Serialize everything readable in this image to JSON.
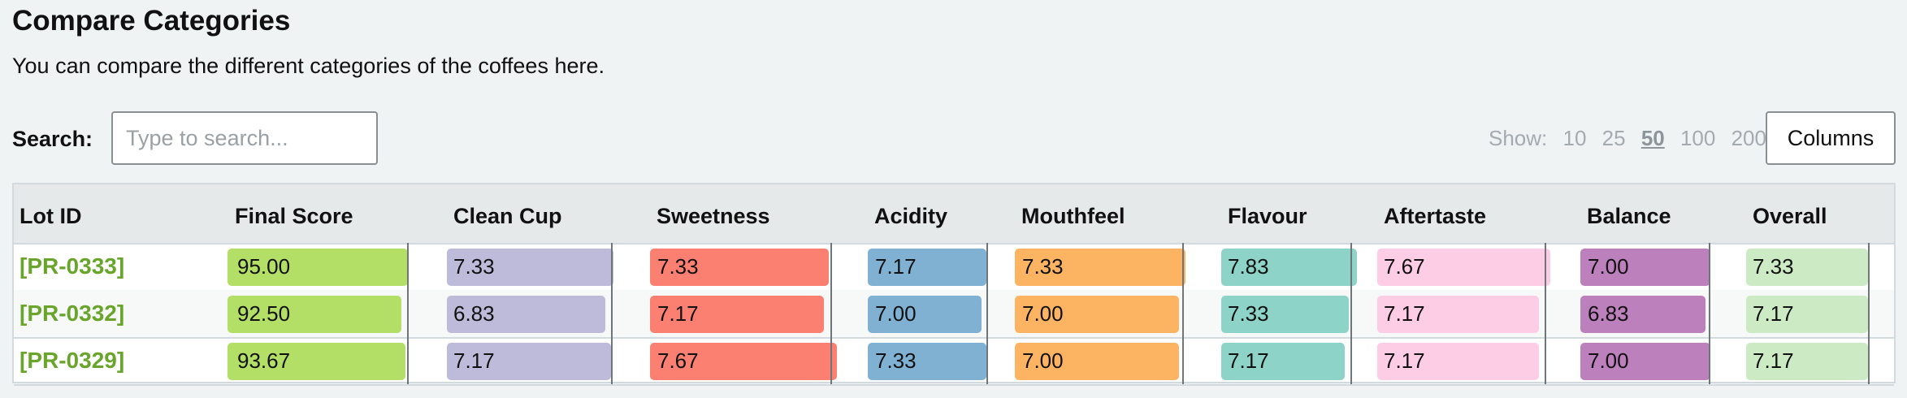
{
  "header": {
    "title": "Compare Categories",
    "description": "You can compare the different categories of the coffees here."
  },
  "search": {
    "label": "Search:",
    "placeholder": "Type to search...",
    "value": ""
  },
  "show": {
    "label": "Show:",
    "options": [
      "10",
      "25",
      "50",
      "100",
      "200"
    ],
    "selected": "50"
  },
  "columns_button": {
    "label": "Columns"
  },
  "table": {
    "columns": [
      "Lot ID",
      "Final Score",
      "Clean Cup",
      "Sweetness",
      "Acidity",
      "Mouthfeel",
      "Flavour",
      "Aftertaste",
      "Balance",
      "Overall"
    ],
    "category_colors": {
      "Final Score": "#b3df66",
      "Clean Cup": "#bebada",
      "Sweetness": "#fb8072",
      "Acidity": "#80b1d3",
      "Mouthfeel": "#fdb462",
      "Flavour": "#8dd3c7",
      "Aftertaste": "#fccde5",
      "Balance": "#bc80bd",
      "Overall": "#ccebc5"
    },
    "rows": [
      {
        "lot_id": "[PR-0333]",
        "final_score": "95.00",
        "clean_cup": "7.33",
        "sweetness": "7.33",
        "acidity": "7.17",
        "mouthfeel": "7.33",
        "flavour": "7.83",
        "aftertaste": "7.67",
        "balance": "7.00",
        "overall": "7.33"
      },
      {
        "lot_id": "[PR-0332]",
        "final_score": "92.50",
        "clean_cup": "6.83",
        "sweetness": "7.17",
        "acidity": "7.00",
        "mouthfeel": "7.00",
        "flavour": "7.33",
        "aftertaste": "7.17",
        "balance": "6.83",
        "overall": "7.17"
      },
      {
        "lot_id": "[PR-0329]",
        "final_score": "93.67",
        "clean_cup": "7.17",
        "sweetness": "7.67",
        "acidity": "7.33",
        "mouthfeel": "7.00",
        "flavour": "7.17",
        "aftertaste": "7.17",
        "balance": "7.00",
        "overall": "7.17"
      }
    ]
  }
}
